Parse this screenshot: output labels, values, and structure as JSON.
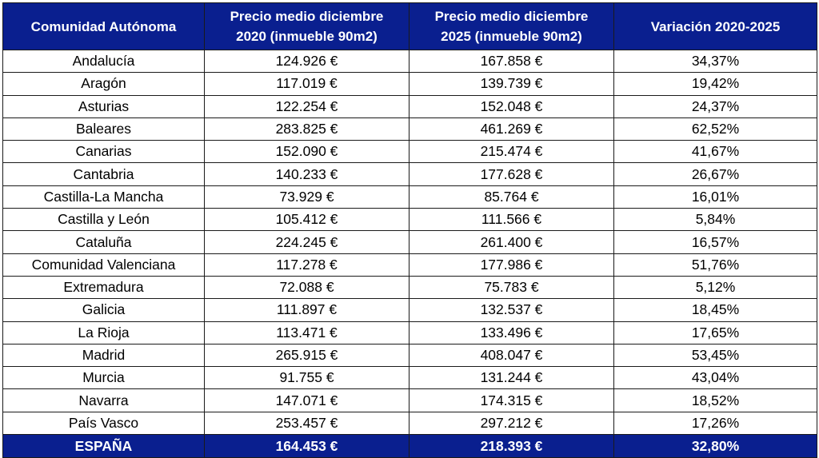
{
  "headers": [
    "Comunidad Autónoma",
    "Precio medio diciembre\n2020 (inmueble 90m2)",
    "Precio medio diciembre\n2025 (inmueble 90m2)",
    "Variación 2020-2025"
  ],
  "rows": [
    [
      "Andalucía",
      "124.926 €",
      "167.858 €",
      "34,37%"
    ],
    [
      "Aragón",
      "117.019 €",
      "139.739 €",
      "19,42%"
    ],
    [
      "Asturias",
      "122.254 €",
      "152.048 €",
      "24,37%"
    ],
    [
      "Baleares",
      "283.825 €",
      "461.269 €",
      "62,52%"
    ],
    [
      "Canarias",
      "152.090 €",
      "215.474 €",
      "41,67%"
    ],
    [
      "Cantabria",
      "140.233 €",
      "177.628 €",
      "26,67%"
    ],
    [
      "Castilla-La Mancha",
      "73.929 €",
      "85.764 €",
      "16,01%"
    ],
    [
      "Castilla y León",
      "105.412 €",
      "111.566 €",
      "5,84%"
    ],
    [
      "Cataluña",
      "224.245 €",
      "261.400 €",
      "16,57%"
    ],
    [
      "Comunidad Valenciana",
      "117.278 €",
      "177.986 €",
      "51,76%"
    ],
    [
      "Extremadura",
      "72.088 €",
      "75.783 €",
      "5,12%"
    ],
    [
      "Galicia",
      "111.897 €",
      "132.537 €",
      "18,45%"
    ],
    [
      "La Rioja",
      "113.471 €",
      "133.496 €",
      "17,65%"
    ],
    [
      "Madrid",
      "265.915 €",
      "408.047 €",
      "53,45%"
    ],
    [
      "Murcia",
      "91.755 €",
      "131.244 €",
      "43,04%"
    ],
    [
      "Navarra",
      "147.071 €",
      "174.315 €",
      "18,52%"
    ],
    [
      "País Vasco",
      "253.457 €",
      "297.212 €",
      "17,26%"
    ]
  ],
  "total": [
    "ESPAÑA",
    "164.453 €",
    "218.393 €",
    "32,80%"
  ],
  "colors": {
    "header_bg": "#0a1f8f",
    "header_text": "#ffffff",
    "border": "#1a1a1a"
  }
}
